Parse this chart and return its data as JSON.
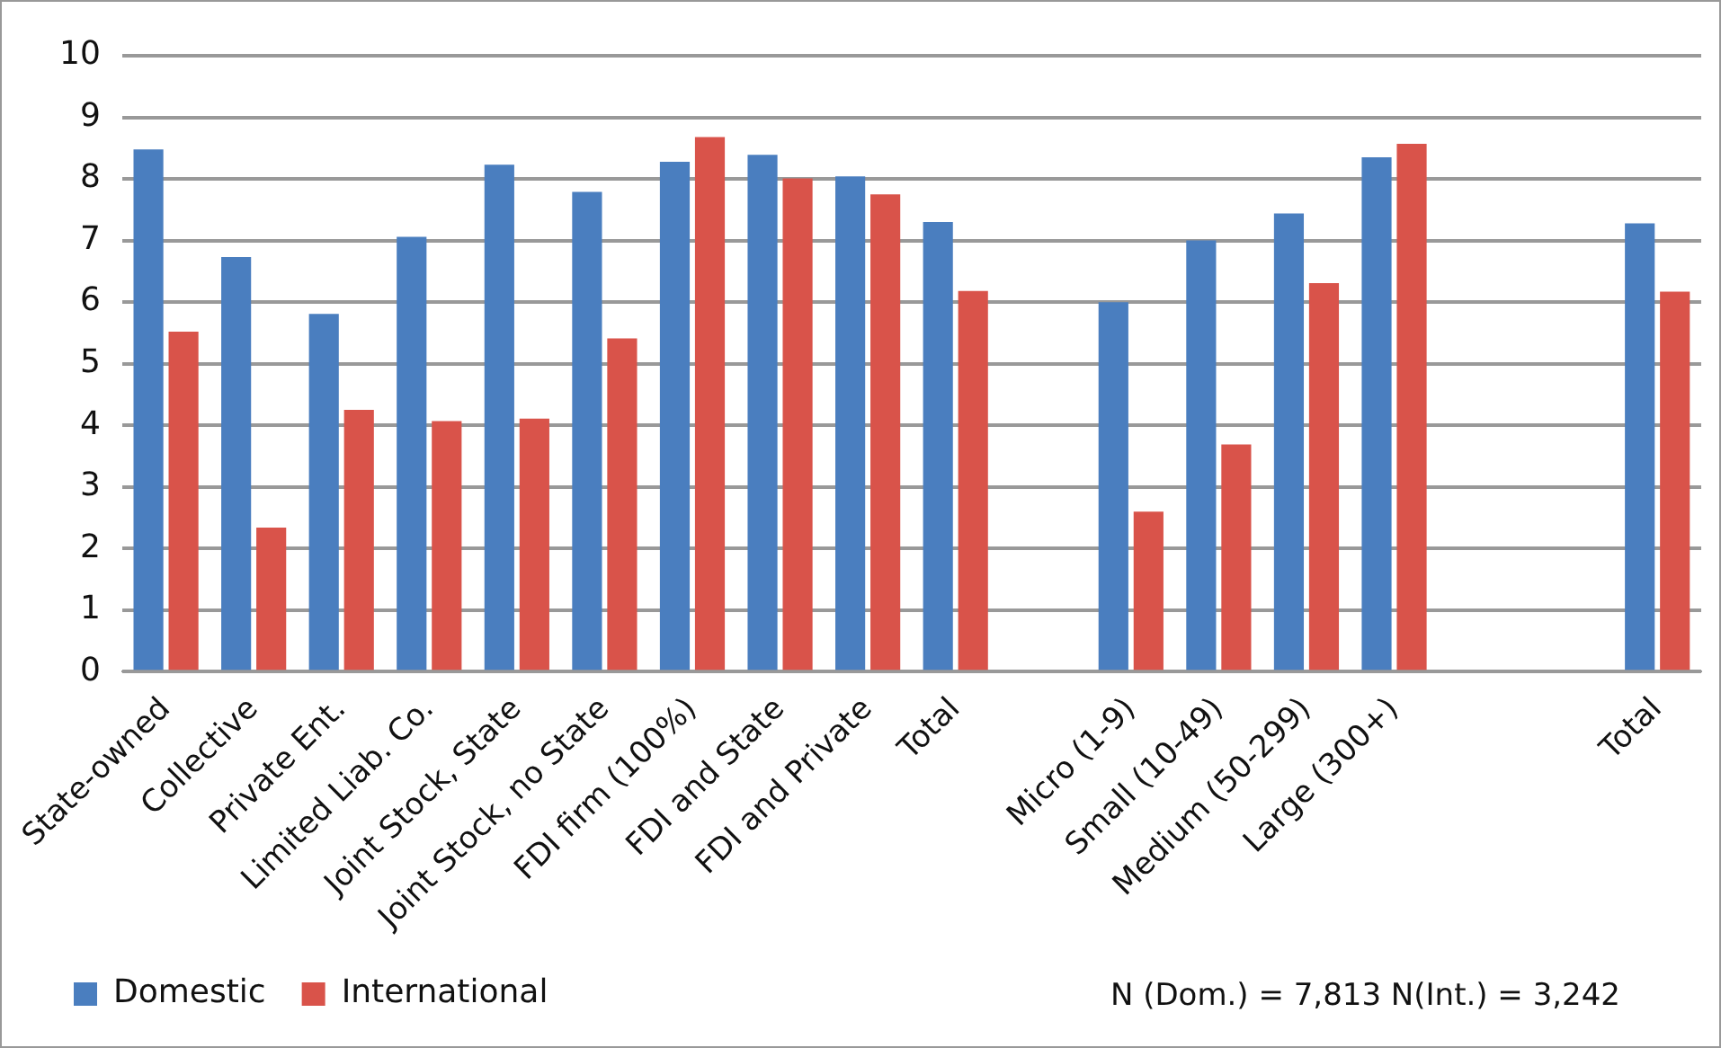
{
  "chart_data": {
    "type": "bar",
    "categories": [
      "State-owned",
      "Collective",
      "Private Ent.",
      "Limited Liab. Co.",
      "Joint Stock, State",
      "Joint Stock, no State",
      "FDI firm (100%)",
      "FDI and State",
      "FDI and Private",
      "Total",
      null,
      "Micro (1-9)",
      "Small (10-49)",
      "Medium (50-299)",
      "Large (300+)",
      null,
      null,
      "Total"
    ],
    "series": [
      {
        "name": "Domestic",
        "color": "#4a7ebf",
        "values": [
          8.48,
          6.73,
          5.81,
          7.06,
          8.23,
          7.79,
          8.28,
          8.39,
          8.04,
          7.3,
          null,
          6.0,
          7.0,
          7.44,
          8.35,
          null,
          null,
          7.28
        ]
      },
      {
        "name": "International",
        "color": "#d9534a",
        "values": [
          5.52,
          2.34,
          4.25,
          4.07,
          4.11,
          5.41,
          8.68,
          8.01,
          7.75,
          6.18,
          null,
          2.6,
          3.69,
          6.31,
          8.57,
          null,
          null,
          6.17
        ]
      }
    ],
    "ylim": [
      0,
      10
    ],
    "yticks": [
      0,
      1,
      2,
      3,
      4,
      5,
      6,
      7,
      8,
      9,
      10
    ],
    "grid": "y",
    "legend": "bottom left",
    "annotations": [
      "N (Dom.) = 7,813 N(Int.) = 3,242"
    ]
  }
}
